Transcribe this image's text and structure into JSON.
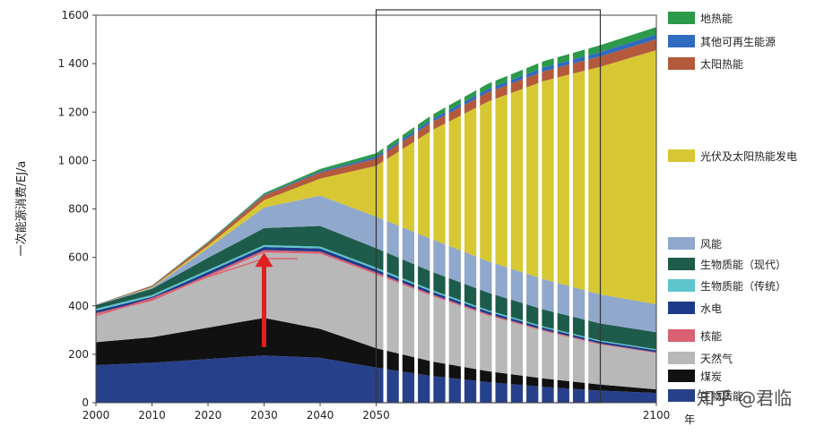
{
  "chart_data": {
    "type": "area",
    "stacked": true,
    "ylabel": "一次能源消费/EJ/a",
    "xlabel": "年",
    "x": [
      2000,
      2010,
      2020,
      2030,
      2040,
      2050,
      2060,
      2070,
      2080,
      2090,
      2100
    ],
    "x_ticks": [
      "2000",
      "2010",
      "2020",
      "2030",
      "2040",
      "2050",
      "2100"
    ],
    "y_ticks": [
      "0",
      "200",
      "400",
      "600",
      "800",
      "1 000",
      "1 200",
      "1 400",
      "1600"
    ],
    "ylim": [
      0,
      1600
    ],
    "xlim": [
      2000,
      2100
    ],
    "legend_position": "right",
    "series": [
      {
        "name": "生物质能",
        "color": "#27408b",
        "values": [
          155,
          165,
          180,
          195,
          185,
          145,
          110,
          85,
          65,
          50,
          40
        ]
      },
      {
        "name": "煤炭",
        "color": "#111111",
        "values": [
          95,
          105,
          130,
          155,
          120,
          80,
          60,
          45,
          35,
          25,
          15
        ]
      },
      {
        "name": "天然气",
        "color": "#b8b8b8",
        "values": [
          115,
          150,
          210,
          270,
          310,
          305,
          270,
          230,
          195,
          165,
          150
        ]
      },
      {
        "name": "核能",
        "color": "#d96070",
        "values": [
          5,
          6,
          8,
          10,
          9,
          8,
          7,
          6,
          5,
          4,
          3
        ]
      },
      {
        "name": "水电",
        "color": "#1d3a8a",
        "values": [
          10,
          11,
          12,
          13,
          13,
          12,
          11,
          10,
          9,
          8,
          8
        ]
      },
      {
        "name": "生物质能（传统）",
        "color": "#5ec4cc",
        "values": [
          8,
          8,
          8,
          8,
          8,
          8,
          7,
          6,
          5,
          5,
          5
        ]
      },
      {
        "name": "生物质能（现代）",
        "color": "#1d5c4a",
        "values": [
          15,
          25,
          50,
          70,
          85,
          80,
          75,
          72,
          70,
          70,
          70
        ]
      },
      {
        "name": "风能",
        "color": "#8fa8cc",
        "values": [
          1,
          5,
          40,
          85,
          125,
          130,
          135,
          130,
          125,
          120,
          115
        ]
      },
      {
        "name": "光伏及太阳热能发电",
        "color": "#d7c833",
        "values": [
          0,
          2,
          10,
          30,
          70,
          210,
          450,
          660,
          820,
          940,
          1050
        ]
      },
      {
        "name": "太阳热能",
        "color": "#b45a3c",
        "values": [
          1,
          5,
          12,
          20,
          25,
          30,
          34,
          38,
          40,
          43,
          45
        ]
      },
      {
        "name": "其他可再生能源",
        "color": "#2f6bbf",
        "values": [
          0,
          1,
          2,
          3,
          5,
          8,
          12,
          14,
          16,
          18,
          20
        ]
      },
      {
        "name": "地热能",
        "color": "#2c9a4a",
        "values": [
          0,
          1,
          3,
          6,
          10,
          14,
          18,
          22,
          26,
          28,
          30
        ]
      }
    ],
    "annotations": {
      "arrow": {
        "from": [
          2030,
          230
        ],
        "to": [
          2030,
          620
        ],
        "color": "#e02020"
      },
      "line": {
        "points": [
          [
            2000,
            360
          ],
          [
            2010,
            430
          ],
          [
            2020,
            520
          ],
          [
            2030,
            595
          ],
          [
            2036,
            595
          ]
        ],
        "color": "#e06070"
      },
      "hatched_region": {
        "from": 2050,
        "to": 2090
      }
    },
    "watermark": "知乎 @君临"
  }
}
